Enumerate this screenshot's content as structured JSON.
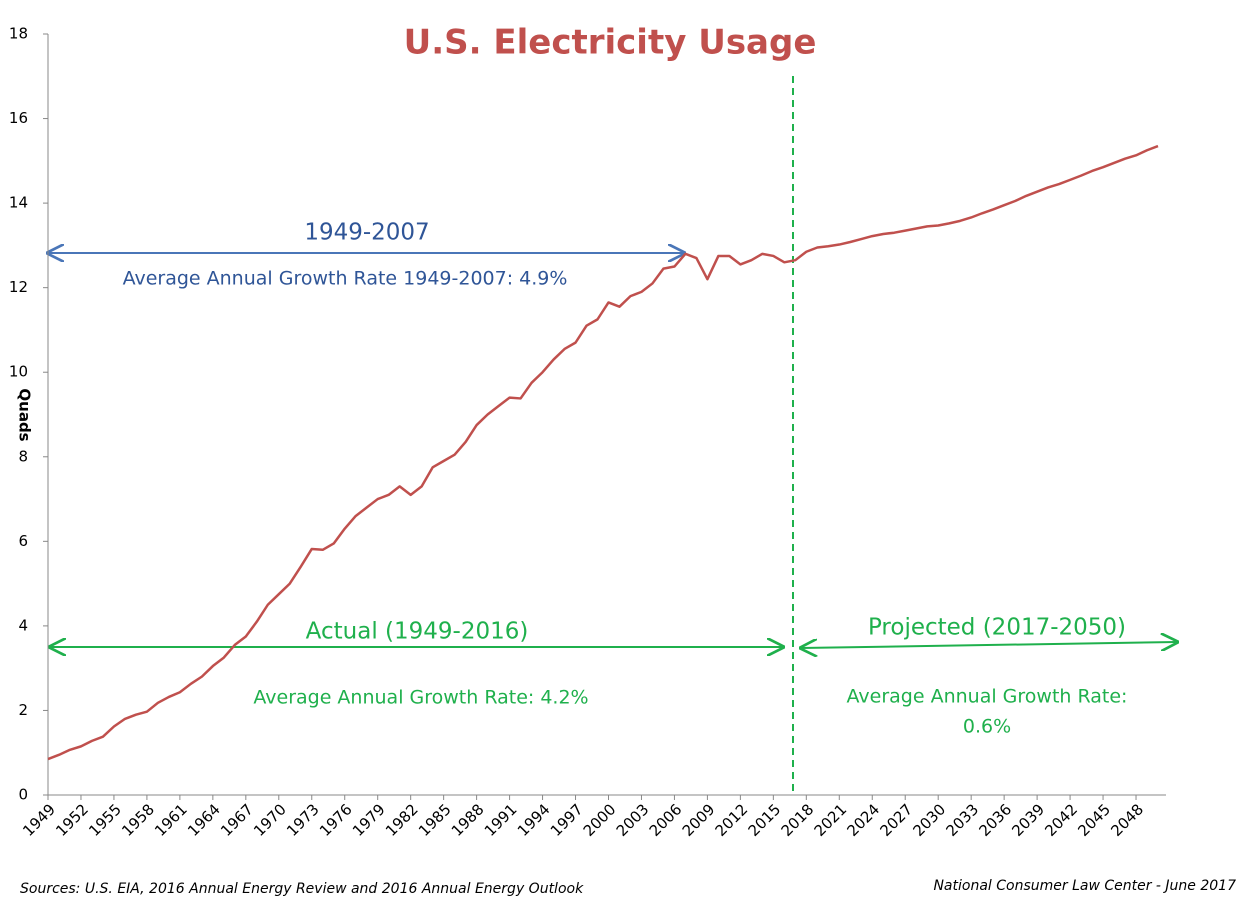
{
  "chart_data": {
    "type": "line",
    "title": "U.S. Electricity Usage",
    "y_label": "Quads",
    "x": [
      1949,
      1950,
      1951,
      1952,
      1953,
      1954,
      1955,
      1956,
      1957,
      1958,
      1959,
      1960,
      1961,
      1962,
      1963,
      1964,
      1965,
      1966,
      1967,
      1968,
      1969,
      1970,
      1971,
      1972,
      1973,
      1974,
      1975,
      1976,
      1977,
      1978,
      1979,
      1980,
      1981,
      1982,
      1983,
      1984,
      1985,
      1986,
      1987,
      1988,
      1989,
      1990,
      1991,
      1992,
      1993,
      1994,
      1995,
      1996,
      1997,
      1998,
      1999,
      2000,
      2001,
      2002,
      2003,
      2004,
      2005,
      2006,
      2007,
      2008,
      2009,
      2010,
      2011,
      2012,
      2013,
      2014,
      2015,
      2016,
      2017,
      2018,
      2019,
      2020,
      2021,
      2022,
      2023,
      2024,
      2025,
      2026,
      2027,
      2028,
      2029,
      2030,
      2031,
      2032,
      2033,
      2034,
      2035,
      2036,
      2037,
      2038,
      2039,
      2040,
      2041,
      2042,
      2043,
      2044,
      2045,
      2046,
      2047,
      2048,
      2049,
      2050
    ],
    "series": [
      {
        "name": "Electricity usage",
        "color": "#c0504d",
        "values": [
          0.85,
          0.95,
          1.07,
          1.15,
          1.28,
          1.38,
          1.62,
          1.8,
          1.9,
          1.97,
          2.18,
          2.32,
          2.43,
          2.63,
          2.8,
          3.05,
          3.25,
          3.55,
          3.75,
          4.1,
          4.5,
          4.75,
          5.0,
          5.4,
          5.82,
          5.8,
          5.95,
          6.3,
          6.6,
          6.8,
          7.0,
          7.1,
          7.3,
          7.1,
          7.3,
          7.75,
          7.9,
          8.05,
          8.35,
          8.75,
          9.0,
          9.2,
          9.4,
          9.38,
          9.75,
          10.0,
          10.3,
          10.55,
          10.7,
          11.1,
          11.25,
          11.65,
          11.55,
          11.8,
          11.9,
          12.1,
          12.45,
          12.5,
          12.8,
          12.7,
          12.2,
          12.75,
          12.75,
          12.55,
          12.65,
          12.8,
          12.75,
          12.6,
          12.65,
          12.85,
          12.95,
          12.98,
          13.02,
          13.08,
          13.15,
          13.22,
          13.27,
          13.3,
          13.35,
          13.4,
          13.45,
          13.47,
          13.52,
          13.58,
          13.66,
          13.76,
          13.85,
          13.95,
          14.05,
          14.17,
          14.27,
          14.37,
          14.45,
          14.55,
          14.65,
          14.76,
          14.85,
          14.95,
          15.05,
          15.13,
          15.25,
          15.35
        ]
      }
    ],
    "xlim": [
      1949,
      2050
    ],
    "xticks": [
      1949,
      1952,
      1955,
      1958,
      1961,
      1964,
      1967,
      1970,
      1973,
      1976,
      1979,
      1982,
      1985,
      1988,
      1991,
      1994,
      1997,
      2000,
      2003,
      2006,
      2009,
      2012,
      2015,
      2018,
      2021,
      2024,
      2027,
      2030,
      2033,
      2036,
      2039,
      2042,
      2045,
      2048
    ],
    "ylim": [
      0,
      18
    ],
    "yticks": [
      0,
      2,
      4,
      6,
      8,
      10,
      12,
      14,
      16,
      18
    ],
    "annotations": {
      "historic_period": "1949-2007",
      "historic_rate": "Average Annual Growth Rate 1949-2007: 4.9%",
      "actual_period": "Actual (1949-2016)",
      "actual_rate": "Average Annual Growth Rate: 4.2%",
      "projected_period": "Projected (2017-2050)",
      "projected_rate_line1": "Average Annual Growth Rate:",
      "projected_rate_line2": "0.6%"
    },
    "source": "Sources: U.S. EIA, 2016 Annual Energy Review and 2016 Annual Energy Outlook",
    "credit": "National Consumer Law Center - June 2017"
  }
}
